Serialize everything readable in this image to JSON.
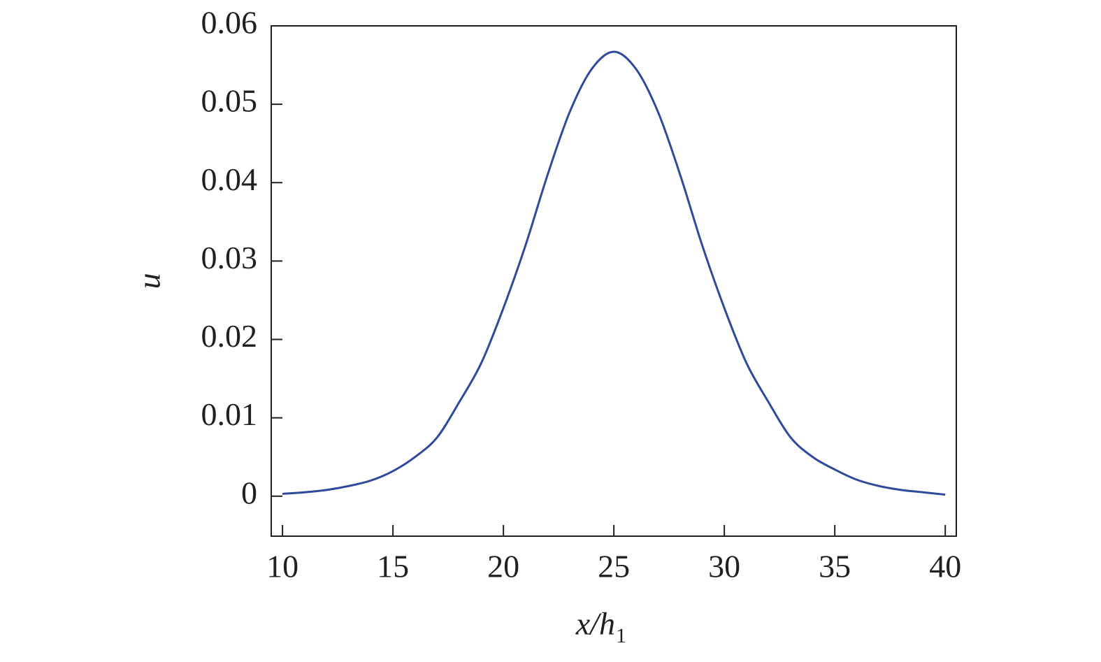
{
  "chart_data": {
    "type": "line",
    "xlabel": "x/h",
    "xlabel_subscript": "1",
    "ylabel": "u",
    "x": [
      10,
      11,
      12,
      13,
      14,
      15,
      16,
      17,
      18,
      19,
      20,
      21,
      22,
      23,
      24,
      25,
      26,
      27,
      28,
      29,
      30,
      31,
      32,
      33,
      34,
      35,
      36,
      37,
      38,
      39,
      40
    ],
    "series": [
      {
        "color": "#2f4a9c",
        "values": [
          0.0003,
          0.0005,
          0.0008,
          0.0013,
          0.002,
          0.0032,
          0.005,
          0.0075,
          0.012,
          0.017,
          0.024,
          0.032,
          0.041,
          0.049,
          0.0545,
          0.0567,
          0.0545,
          0.049,
          0.041,
          0.032,
          0.024,
          0.017,
          0.012,
          0.0075,
          0.005,
          0.0034,
          0.0021,
          0.0013,
          0.0008,
          0.0005,
          0.0002
        ]
      }
    ],
    "xlim": [
      9.49,
      40.5
    ],
    "ylim": [
      -0.0051,
      0.06
    ],
    "xticks": [
      10,
      15,
      20,
      25,
      30,
      35,
      40
    ],
    "yticks": [
      0,
      0.01,
      0.02,
      0.03,
      0.04,
      0.05,
      0.06
    ]
  }
}
